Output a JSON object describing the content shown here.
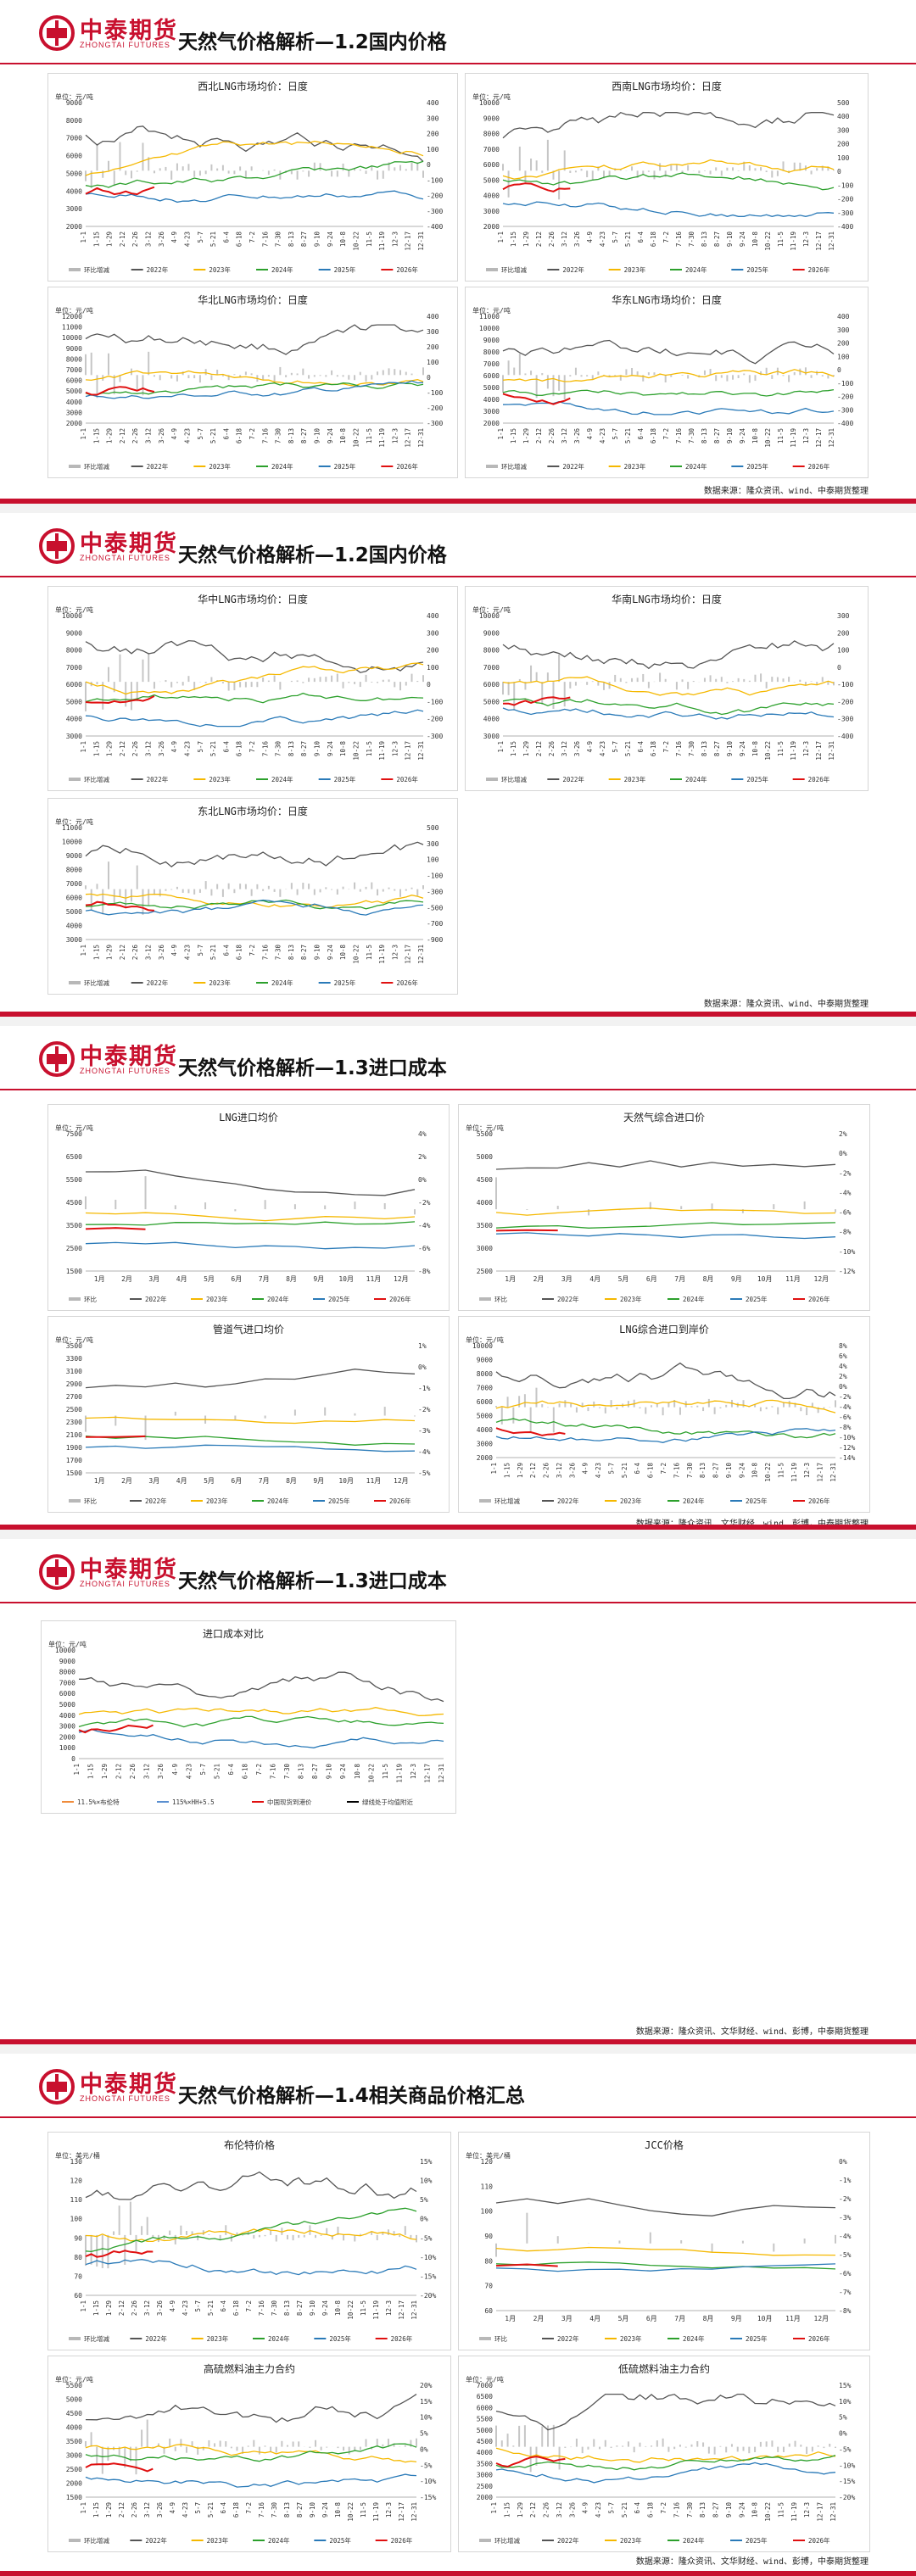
{
  "brand": {
    "name_cn": "中泰期货",
    "name_en": "ZHONGTAI FUTURES",
    "color": "#c8102e"
  },
  "colors": {
    "2022": "#555555",
    "2023": "#f5b800",
    "2024": "#2ca02c",
    "2025": "#2a7ab8",
    "2026": "#e01010",
    "diff": "#b8b8b8"
  },
  "legends": {
    "daily": [
      "环比增减",
      "2022年",
      "2023年",
      "2024年",
      "2025年",
      "2026年"
    ],
    "monthly": [
      "环比",
      "2022年",
      "2023年",
      "2024年",
      "2025年",
      "2026年"
    ],
    "import_compare": [
      "11.5%×布伦特",
      "115%×HH+5.5",
      "中国现货到港价",
      "绿线处于均值附近"
    ]
  },
  "date_ticks_daily": [
    "1-1",
    "1-15",
    "1-29",
    "2-12",
    "2-26",
    "3-12",
    "3-26",
    "4-9",
    "4-23",
    "5-7",
    "5-21",
    "6-4",
    "6-18",
    "7-2",
    "7-16",
    "7-30",
    "8-13",
    "8-27",
    "9-10",
    "9-24",
    "10-8",
    "10-22",
    "11-5",
    "11-19",
    "12-3",
    "12-17",
    "12-31"
  ],
  "month_ticks": [
    "1月",
    "2月",
    "3月",
    "4月",
    "5月",
    "6月",
    "7月",
    "8月",
    "9月",
    "10月",
    "11月",
    "12月"
  ],
  "slides": [
    {
      "title": "天然气价格解析—1.2国内价格",
      "source": "数据来源：隆众资讯、wind、中泰期货整理",
      "charts": [
        {
          "title": "西北LNG市场均价：日度",
          "unit": "单位：元/吨",
          "y_left": [
            "9000",
            "8000",
            "7000",
            "6000",
            "5000",
            "4000",
            "3000",
            "2000"
          ],
          "y_right": [
            "400",
            "300",
            "200",
            "100",
            "0",
            "-100",
            "-200",
            "-300",
            "-400"
          ]
        },
        {
          "title": "西南LNG市场均价：日度",
          "unit": "单位：元/吨",
          "y_left": [
            "10000",
            "9000",
            "8000",
            "7000",
            "6000",
            "5000",
            "4000",
            "3000",
            "2000"
          ],
          "y_right": [
            "500",
            "400",
            "300",
            "200",
            "100",
            "0",
            "-100",
            "-200",
            "-300",
            "-400"
          ]
        },
        {
          "title": "华北LNG市场均价：日度",
          "unit": "单位：元/吨",
          "y_left": [
            "12000",
            "11000",
            "10000",
            "9000",
            "8000",
            "7000",
            "6000",
            "5000",
            "4000",
            "3000",
            "2000"
          ],
          "y_right": [
            "400",
            "300",
            "200",
            "100",
            "0",
            "-100",
            "-200",
            "-300"
          ]
        },
        {
          "title": "华东LNG市场均价：日度",
          "unit": "单位：元/吨",
          "y_left": [
            "11000",
            "10000",
            "9000",
            "8000",
            "7000",
            "6000",
            "5000",
            "4000",
            "3000",
            "2000"
          ],
          "y_right": [
            "400",
            "300",
            "200",
            "100",
            "0",
            "-100",
            "-200",
            "-300",
            "-400"
          ]
        }
      ]
    },
    {
      "title": "天然气价格解析—1.2国内价格",
      "source": "数据来源：隆众资讯、wind、中泰期货整理",
      "charts": [
        {
          "title": "华中LNG市场均价：日度",
          "unit": "单位：元/吨",
          "y_left": [
            "10000",
            "9000",
            "8000",
            "7000",
            "6000",
            "5000",
            "4000",
            "3000"
          ],
          "y_right": [
            "400",
            "300",
            "200",
            "100",
            "0",
            "-100",
            "-200",
            "-300"
          ]
        },
        {
          "title": "华南LNG市场均价：日度",
          "unit": "单位：元/吨",
          "y_left": [
            "10000",
            "9000",
            "8000",
            "7000",
            "6000",
            "5000",
            "4000",
            "3000"
          ],
          "y_right": [
            "300",
            "200",
            "100",
            "0",
            "-100",
            "-200",
            "-300",
            "-400"
          ]
        },
        {
          "title": "东北LNG市场均价：日度",
          "unit": "单位：元/吨",
          "y_left": [
            "11000",
            "10000",
            "9000",
            "8000",
            "7000",
            "6000",
            "5000",
            "4000",
            "3000"
          ],
          "y_right": [
            "500",
            "300",
            "100",
            "-100",
            "-300",
            "-500",
            "-700",
            "-900"
          ]
        }
      ]
    },
    {
      "title": "天然气价格解析—1.3进口成本",
      "source": "数据来源：隆众资讯、文华财经、wind、彭博，中泰期货整理",
      "charts": [
        {
          "title": "LNG进口均价",
          "unit": "单位：元/吨",
          "y_left": [
            "7500",
            "6500",
            "5500",
            "4500",
            "3500",
            "2500",
            "1500"
          ],
          "y_right": [
            "4%",
            "2%",
            "0%",
            "-2%",
            "-4%",
            "-6%",
            "-8%"
          ]
        },
        {
          "title": "天然气综合进口价",
          "unit": "单位：元/吨",
          "y_left": [
            "5500",
            "5000",
            "4500",
            "4000",
            "3500",
            "3000",
            "2500"
          ],
          "y_right": [
            "2%",
            "0%",
            "-2%",
            "-4%",
            "-6%",
            "-8%",
            "-10%",
            "-12%"
          ]
        },
        {
          "title": "管道气进口均价",
          "unit": "单位：元/吨",
          "y_left": [
            "3500",
            "3300",
            "3100",
            "2900",
            "2700",
            "2500",
            "2300",
            "2100",
            "1900",
            "1700",
            "1500"
          ],
          "y_right": [
            "1%",
            "0%",
            "-1%",
            "-2%",
            "-3%",
            "-4%",
            "-5%"
          ]
        },
        {
          "title": "LNG综合进口到岸价",
          "unit": "单位：元/吨",
          "y_left": [
            "10000",
            "9000",
            "8000",
            "7000",
            "6000",
            "5000",
            "4000",
            "3000",
            "2000"
          ],
          "y_right": [
            "8%",
            "6%",
            "4%",
            "2%",
            "0%",
            "-2%",
            "-4%",
            "-6%",
            "-8%",
            "-10%",
            "-12%",
            "-14%"
          ]
        }
      ]
    },
    {
      "title": "天然气价格解析—1.3进口成本",
      "source": "数据来源：隆众资讯、文华财经、wind、彭博，中泰期货整理",
      "charts": [
        {
          "title": "进口成本对比",
          "unit": "单位：元/吨",
          "y_left": [
            "10000",
            "9000",
            "8000",
            "7000",
            "6000",
            "5000",
            "4000",
            "3000",
            "2000",
            "1000",
            "0"
          ],
          "y_right": []
        }
      ]
    },
    {
      "title": "天然气价格解析—1.4相关商品价格汇总",
      "source": "数据来源：隆众资讯、文华财经、wind、彭博，中泰期货整理",
      "charts": [
        {
          "title": "布伦特价格",
          "unit": "单位：美元/桶",
          "y_left": [
            "130",
            "120",
            "110",
            "100",
            "90",
            "80",
            "70",
            "60"
          ],
          "y_right": [
            "15%",
            "10%",
            "5%",
            "0%",
            "-5%",
            "-10%",
            "-15%",
            "-20%"
          ]
        },
        {
          "title": "JCC价格",
          "unit": "单位：美元/桶",
          "y_left": [
            "120",
            "110",
            "100",
            "90",
            "80",
            "70",
            "60"
          ],
          "y_right": [
            "0%",
            "-1%",
            "-2%",
            "-3%",
            "-4%",
            "-5%",
            "-6%",
            "-7%",
            "-8%"
          ]
        },
        {
          "title": "高硫燃料油主力合约",
          "unit": "单位：元/吨",
          "y_left": [
            "5500",
            "5000",
            "4500",
            "4000",
            "3500",
            "3000",
            "2500",
            "2000",
            "1500"
          ],
          "y_right": [
            "20%",
            "15%",
            "10%",
            "5%",
            "0%",
            "-5%",
            "-10%",
            "-15%"
          ]
        },
        {
          "title": "低硫燃料油主力合约",
          "unit": "单位：元/吨",
          "y_left": [
            "7000",
            "6500",
            "6000",
            "5500",
            "5000",
            "4500",
            "4000",
            "3500",
            "3000",
            "2500",
            "2000"
          ],
          "y_right": [
            "15%",
            "10%",
            "5%",
            "0%",
            "-5%",
            "-10%",
            "-15%",
            "-20%"
          ]
        }
      ]
    }
  ]
}
